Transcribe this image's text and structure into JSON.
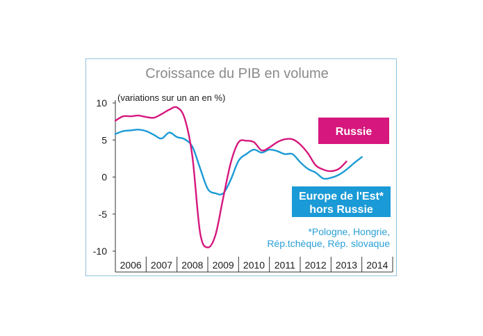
{
  "chart_data": {
    "type": "line",
    "title": "Croissance du PIB en volume",
    "subtitle": "(variations sur un an en %)",
    "ylim": [
      -10,
      10
    ],
    "yticks": [
      10,
      5,
      0,
      -5,
      -10
    ],
    "year_labels": [
      "2006",
      "2007",
      "2008",
      "2009",
      "2010",
      "2011",
      "2012",
      "2013",
      "2014"
    ],
    "x_range": [
      2006,
      2015
    ],
    "grid": false,
    "series": [
      {
        "name": "Russie",
        "color": "#d6177d",
        "points": [
          [
            2006.0,
            7.6
          ],
          [
            2006.25,
            8.2
          ],
          [
            2006.5,
            8.2
          ],
          [
            2006.75,
            8.3
          ],
          [
            2007.0,
            8.1
          ],
          [
            2007.25,
            8.0
          ],
          [
            2007.5,
            8.5
          ],
          [
            2007.75,
            9.1
          ],
          [
            2008.0,
            9.4
          ],
          [
            2008.25,
            7.9
          ],
          [
            2008.5,
            2.8
          ],
          [
            2008.75,
            -7.5
          ],
          [
            2009.0,
            -9.5
          ],
          [
            2009.25,
            -7.8
          ],
          [
            2009.5,
            -2.8
          ],
          [
            2009.75,
            2.0
          ],
          [
            2010.0,
            4.7
          ],
          [
            2010.25,
            4.9
          ],
          [
            2010.5,
            4.7
          ],
          [
            2010.75,
            3.6
          ],
          [
            2011.0,
            4.0
          ],
          [
            2011.25,
            4.7
          ],
          [
            2011.5,
            5.1
          ],
          [
            2011.75,
            5.1
          ],
          [
            2012.0,
            4.4
          ],
          [
            2012.25,
            3.2
          ],
          [
            2012.5,
            1.6
          ],
          [
            2012.75,
            1.0
          ],
          [
            2013.0,
            0.8
          ],
          [
            2013.25,
            1.1
          ],
          [
            2013.5,
            2.1
          ]
        ]
      },
      {
        "name": "Europe de l'Est* hors Russie",
        "color": "#1a9ad6",
        "points": [
          [
            2006.0,
            5.8
          ],
          [
            2006.25,
            6.2
          ],
          [
            2006.5,
            6.3
          ],
          [
            2006.75,
            6.4
          ],
          [
            2007.0,
            6.2
          ],
          [
            2007.25,
            5.7
          ],
          [
            2007.5,
            5.2
          ],
          [
            2007.75,
            6.0
          ],
          [
            2008.0,
            5.4
          ],
          [
            2008.25,
            5.1
          ],
          [
            2008.5,
            4.1
          ],
          [
            2008.75,
            1.2
          ],
          [
            2009.0,
            -1.6
          ],
          [
            2009.25,
            -2.2
          ],
          [
            2009.5,
            -2.2
          ],
          [
            2009.75,
            -0.3
          ],
          [
            2010.0,
            2.2
          ],
          [
            2010.25,
            3.1
          ],
          [
            2010.5,
            3.7
          ],
          [
            2010.75,
            3.3
          ],
          [
            2011.0,
            3.7
          ],
          [
            2011.25,
            3.5
          ],
          [
            2011.5,
            3.1
          ],
          [
            2011.75,
            3.1
          ],
          [
            2012.0,
            2.0
          ],
          [
            2012.25,
            1.1
          ],
          [
            2012.5,
            0.6
          ],
          [
            2012.75,
            -0.2
          ],
          [
            2013.0,
            -0.1
          ],
          [
            2013.25,
            0.3
          ],
          [
            2013.5,
            1.0
          ],
          [
            2013.75,
            1.9
          ],
          [
            2014.0,
            2.7
          ]
        ]
      }
    ],
    "legend": {
      "russie_label": "Russie",
      "europe_label_line1": "Europe de l'Est*",
      "europe_label_line2": "hors Russie",
      "russie_color": "#d6177d",
      "europe_color": "#1a9ad6"
    },
    "annotations": {
      "note_line1": "*Pologne, Hongrie,",
      "note_line2": "Rép.tchèque, Rép. slovaque"
    }
  }
}
